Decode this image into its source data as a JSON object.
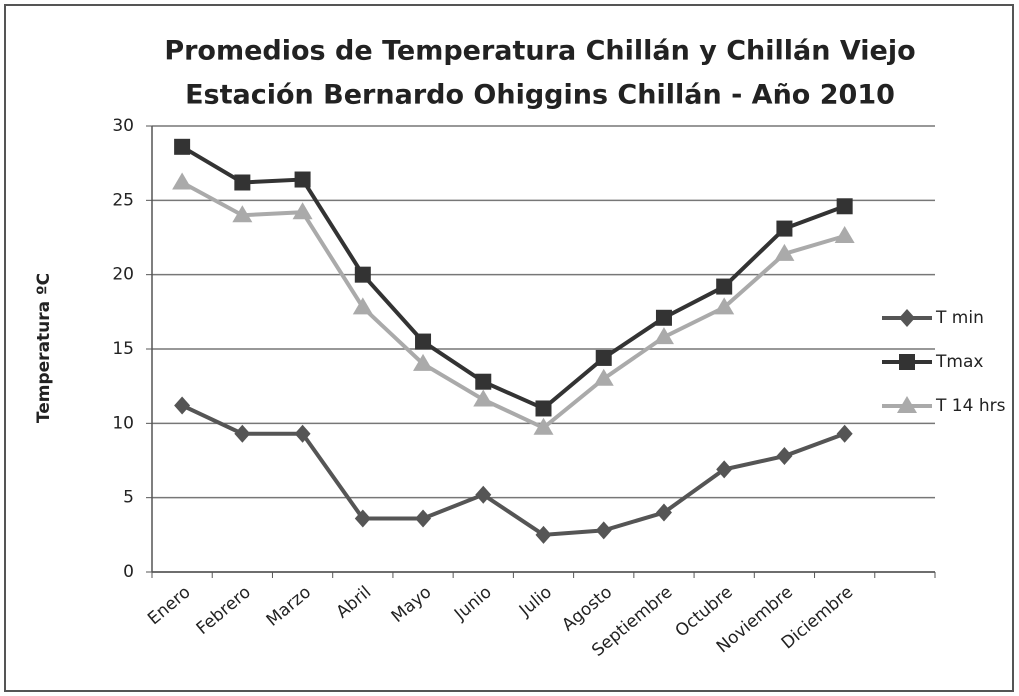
{
  "chart_data": {
    "type": "line",
    "title": "Promedios de  Temperatura Chillán y Chillán Viejo",
    "subtitle": "Estación Bernardo Ohiggins Chillán - Año 2010",
    "y_label": "Temperatura ºC",
    "categories": [
      "Enero",
      "Febrero",
      "Marzo",
      "Abril",
      "Mayo",
      "Junio",
      "Julio",
      "Agosto",
      "Septiembre",
      "Octubre",
      "Noviembre",
      "Diciembre",
      null
    ],
    "series": [
      {
        "name": "T min",
        "color": "#555555",
        "marker": "diamond",
        "values": [
          11.2,
          9.3,
          9.3,
          3.6,
          3.6,
          5.2,
          2.5,
          2.8,
          4.0,
          6.9,
          7.8,
          9.3,
          null
        ]
      },
      {
        "name": "Tmax",
        "color": "#333333",
        "marker": "square",
        "values": [
          28.6,
          26.2,
          26.4,
          20.0,
          15.5,
          12.8,
          11.0,
          14.4,
          17.1,
          19.2,
          23.1,
          24.6,
          null
        ]
      },
      {
        "name": "T 14 hrs",
        "color": "#aaaaaa",
        "marker": "triangle",
        "values": [
          26.2,
          24.0,
          24.2,
          17.8,
          14.0,
          11.6,
          9.7,
          13.0,
          15.8,
          17.8,
          21.4,
          22.6,
          null
        ]
      }
    ],
    "ylim": [
      0,
      30
    ],
    "yticks": [
      0,
      5,
      10,
      15,
      20,
      25,
      30
    ],
    "grid": true,
    "legend": "right"
  }
}
